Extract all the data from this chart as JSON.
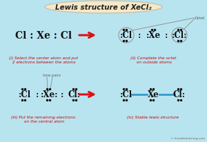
{
  "title": "Lewis structure of XeCl₂",
  "bg_color": "#b8e4f0",
  "title_bg": "#f5e8c8",
  "title_text_color": "#222222",
  "red_arrow_color": "#dd1111",
  "section_labels": [
    "(i) Select the center atom and put\n 2 electrons between the atoms",
    "(ii) Complete the octet\n on outside atoms",
    "(iii) Put the remaining electrons\n on the central atom",
    "(iv) Stable lewis structure"
  ],
  "label_color": "#cc0000",
  "dot_color": "#111111",
  "bond_color": "#3399cc",
  "circle_color": "#999999",
  "watermark": "© knordislearning.com",
  "octet_label": "Octet",
  "lone_pairs_label": "lone pairs",
  "figsize": [
    3.0,
    2.07
  ],
  "dpi": 100
}
